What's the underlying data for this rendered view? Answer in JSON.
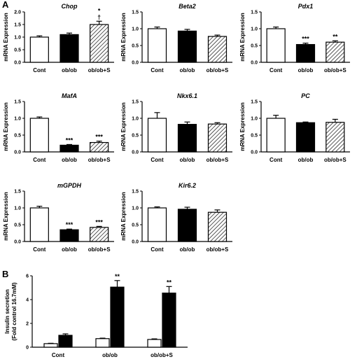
{
  "panel_labels": [
    "A",
    "B"
  ],
  "chart_data": [
    {
      "type": "bar",
      "title": "Chop",
      "ylabel": "mRNA Expression",
      "categories": [
        "Cont",
        "ob/ob",
        "ob/ob+S"
      ],
      "values": [
        1.0,
        1.1,
        1.5
      ],
      "errors": [
        0.05,
        0.06,
        0.13
      ],
      "annotations": [
        "",
        "",
        "*\n†"
      ],
      "ylim": [
        0,
        2.0
      ],
      "yticks": [
        "0.0",
        "0.5",
        "1.0",
        "1.5",
        "2.0"
      ]
    },
    {
      "type": "bar",
      "title": "Beta2",
      "ylabel": "mRNA Expression",
      "categories": [
        "Cont",
        "ob/ob",
        "ob/ob+S"
      ],
      "values": [
        1.0,
        0.93,
        0.77
      ],
      "errors": [
        0.05,
        0.05,
        0.04
      ],
      "annotations": [
        "",
        "",
        ""
      ],
      "ylim": [
        0,
        1.5
      ],
      "yticks": [
        "0.0",
        "0.5",
        "1.0",
        "1.5"
      ]
    },
    {
      "type": "bar",
      "title": "Pdx1",
      "ylabel": "mRNA Expression",
      "categories": [
        "Cont",
        "ob/ob",
        "ob/ob+S"
      ],
      "values": [
        1.0,
        0.53,
        0.6
      ],
      "errors": [
        0.05,
        0.04,
        0.04
      ],
      "annotations": [
        "",
        "***",
        "**"
      ],
      "ylim": [
        0,
        1.5
      ],
      "yticks": [
        "0.0",
        "0.5",
        "1.0",
        "1.5"
      ]
    },
    {
      "type": "bar",
      "title": "MafA",
      "ylabel": "mRNA Expression",
      "categories": [
        "Cont",
        "ob/ob",
        "ob/ob+S"
      ],
      "values": [
        1.0,
        0.2,
        0.28
      ],
      "errors": [
        0.04,
        0.02,
        0.04
      ],
      "annotations": [
        "",
        "***",
        "***"
      ],
      "ylim": [
        0,
        1.5
      ],
      "yticks": [
        "0.0",
        "0.5",
        "1.0",
        "1.5"
      ]
    },
    {
      "type": "bar",
      "title": "Nkx6.1",
      "ylabel": "mRNA Expression",
      "categories": [
        "Cont",
        "ob/ob",
        "ob/ob+S"
      ],
      "values": [
        1.0,
        0.82,
        0.83
      ],
      "errors": [
        0.17,
        0.07,
        0.04
      ],
      "annotations": [
        "",
        "",
        ""
      ],
      "ylim": [
        0,
        1.5
      ],
      "yticks": [
        "0.0",
        "0.5",
        "1.0",
        "1.5"
      ]
    },
    {
      "type": "bar",
      "title": "PC",
      "ylabel": "mRNA Expression",
      "categories": [
        "Cont",
        "ob/ob",
        "ob/ob+S"
      ],
      "values": [
        1.0,
        0.87,
        0.88
      ],
      "errors": [
        0.09,
        0.02,
        0.09
      ],
      "annotations": [
        "",
        "",
        ""
      ],
      "ylim": [
        0,
        1.5
      ],
      "yticks": [
        "0.0",
        "0.5",
        "1.0",
        "1.5"
      ]
    },
    {
      "type": "bar",
      "title": "mGPDH",
      "ylabel": "mRNA Expression",
      "categories": [
        "Cont",
        "ob/ob",
        "ob/ob+S"
      ],
      "values": [
        1.0,
        0.35,
        0.42
      ],
      "errors": [
        0.05,
        0.02,
        0.03
      ],
      "annotations": [
        "",
        "***",
        "***"
      ],
      "ylim": [
        0,
        1.5
      ],
      "yticks": [
        "0.0",
        "0.5",
        "1.0",
        "1.5"
      ]
    },
    {
      "type": "bar",
      "title": "Kir6.2",
      "ylabel": "mRNA Expression",
      "categories": [
        "Cont",
        "ob/ob",
        "ob/ob+S"
      ],
      "values": [
        1.0,
        0.96,
        0.87
      ],
      "errors": [
        0.03,
        0.06,
        0.07
      ],
      "annotations": [
        "",
        "",
        ""
      ],
      "ylim": [
        0,
        1.5
      ],
      "yticks": [
        "0.0",
        "0.5",
        "1.0",
        "1.5"
      ]
    },
    {
      "type": "bar",
      "title": "",
      "ylabel": "Insulin secretion\n(Fold control 16.7mM)",
      "categories": [
        "Cont",
        "ob/ob",
        "ob/ob+S"
      ],
      "series": [
        {
          "values": [
            0.3,
            0.72,
            0.65
          ],
          "errors": [
            0.03,
            0.04,
            0.05
          ]
        },
        {
          "values": [
            1.0,
            5.05,
            4.55
          ],
          "errors": [
            0.12,
            0.55,
            0.55
          ]
        }
      ],
      "annotations": [
        "",
        "**",
        "**"
      ],
      "ylim": [
        0,
        6
      ],
      "yticks": [
        "0",
        "2",
        "4",
        "6"
      ]
    }
  ]
}
